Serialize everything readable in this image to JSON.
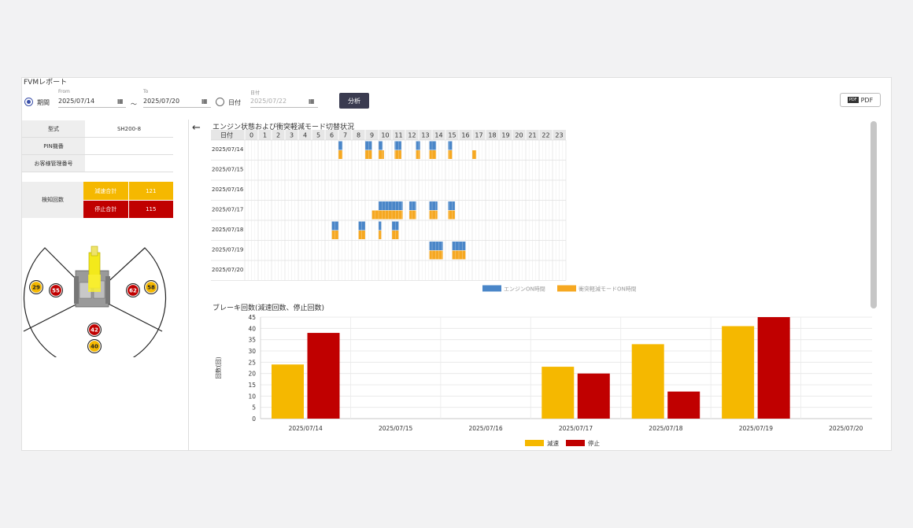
{
  "header": {
    "title": "FVMレポート",
    "period_label": "期間",
    "from_label": "From",
    "from_value": "2025/07/14",
    "tilde": "～",
    "to_label": "To",
    "to_value": "2025/07/20",
    "date_label": "日付",
    "date_small_label": "日付",
    "date_value": "2025/07/22",
    "analyze_label": "分析",
    "pdf_label": "PDF",
    "pdf_icon_text": "PDF",
    "calendar_glyph": "▦"
  },
  "info": {
    "rows": [
      {
        "key": "型式",
        "value": "SH200-8"
      },
      {
        "key": "PIN機番",
        "value": ""
      },
      {
        "key": "お客様管理番号",
        "value": ""
      }
    ],
    "detection_label": "検知回数",
    "decel_label": "減速合計",
    "decel_value": "121",
    "stop_label": "停止合計",
    "stop_value": "115"
  },
  "colors": {
    "decel": "#f5b800",
    "stop": "#c00000",
    "engine": "#4a86c8",
    "mode": "#f6a821"
  },
  "diagram": {
    "markers": [
      {
        "name": "marker-left-outer",
        "value": "29",
        "kind": "decel"
      },
      {
        "name": "marker-left-inner",
        "value": "55",
        "kind": "stop"
      },
      {
        "name": "marker-right-inner",
        "value": "62",
        "kind": "stop"
      },
      {
        "name": "marker-right-outer",
        "value": "58",
        "kind": "decel"
      },
      {
        "name": "marker-rear-inner",
        "value": "42",
        "kind": "stop"
      },
      {
        "name": "marker-rear-outer",
        "value": "40",
        "kind": "decel"
      }
    ]
  },
  "back_glyph": "←",
  "chart_data": [
    {
      "type": "heatmap",
      "title": "エンジン状態および衝突軽減モード切替状況",
      "row_header": "日付",
      "hours": [
        "0",
        "1",
        "2",
        "3",
        "4",
        "5",
        "6",
        "7",
        "8",
        "9",
        "10",
        "11",
        "12",
        "13",
        "14",
        "15",
        "16",
        "17",
        "18",
        "19",
        "20",
        "21",
        "22",
        "23"
      ],
      "dates": [
        "2025/07/14",
        "2025/07/15",
        "2025/07/16",
        "2025/07/17",
        "2025/07/18",
        "2025/07/19",
        "2025/07/20"
      ],
      "engine_on": [
        [
          7.0,
          7.3
        ],
        [
          9.0,
          9.5
        ],
        [
          10.0,
          10.3
        ],
        [
          11.2,
          11.7
        ],
        [
          12.8,
          13.1
        ],
        [
          13.8,
          14.3
        ],
        [
          15.2,
          15.5
        ]
      ],
      "engine_rows": [
        0,
        0,
        0,
        0,
        0,
        0,
        0
      ],
      "engine_on_all": [
        {
          "row": 0,
          "ranges": [
            [
              7.0,
              7.3
            ],
            [
              9.0,
              9.5
            ],
            [
              10.0,
              10.3
            ],
            [
              11.2,
              11.7
            ],
            [
              12.8,
              13.1
            ],
            [
              13.8,
              14.3
            ],
            [
              15.2,
              15.5
            ]
          ]
        },
        {
          "row": 3,
          "ranges": [
            [
              10.0,
              11.8
            ],
            [
              12.3,
              12.8
            ],
            [
              13.8,
              14.4
            ],
            [
              15.2,
              15.7
            ]
          ]
        },
        {
          "row": 4,
          "ranges": [
            [
              6.5,
              7.0
            ],
            [
              8.5,
              9.0
            ],
            [
              10.0,
              10.2
            ],
            [
              11.0,
              11.5
            ]
          ]
        },
        {
          "row": 5,
          "ranges": [
            [
              13.8,
              14.8
            ],
            [
              15.5,
              16.5
            ]
          ]
        }
      ],
      "mode_on_all": [
        {
          "row": 0,
          "ranges": [
            [
              7.0,
              7.3
            ],
            [
              9.0,
              9.5
            ],
            [
              10.0,
              10.4
            ],
            [
              11.2,
              11.7
            ],
            [
              12.8,
              13.1
            ],
            [
              13.8,
              14.3
            ],
            [
              15.2,
              15.5
            ],
            [
              17.0,
              17.3
            ]
          ]
        },
        {
          "row": 3,
          "ranges": [
            [
              9.5,
              11.8
            ],
            [
              12.3,
              12.8
            ],
            [
              13.8,
              14.4
            ],
            [
              15.2,
              15.7
            ]
          ]
        },
        {
          "row": 4,
          "ranges": [
            [
              6.5,
              7.0
            ],
            [
              8.5,
              9.0
            ],
            [
              10.0,
              10.2
            ],
            [
              11.0,
              11.5
            ]
          ]
        },
        {
          "row": 5,
          "ranges": [
            [
              13.8,
              14.8
            ],
            [
              15.5,
              16.5
            ]
          ]
        }
      ],
      "legend": [
        "エンジンON時間",
        "衝突軽減モードON時間"
      ]
    },
    {
      "type": "bar",
      "title": "ブレーキ回数(減速回数、停止回数)",
      "ylabel": "回数(回)",
      "ylim": [
        0,
        45
      ],
      "yticks": [
        0,
        5,
        10,
        15,
        20,
        25,
        30,
        35,
        40,
        45
      ],
      "categories": [
        "2025/07/14",
        "2025/07/15",
        "2025/07/16",
        "2025/07/17",
        "2025/07/18",
        "2025/07/19",
        "2025/07/20"
      ],
      "series": [
        {
          "name": "減速",
          "values": [
            24,
            0,
            0,
            23,
            33,
            41,
            0
          ]
        },
        {
          "name": "停止",
          "values": [
            38,
            0,
            0,
            20,
            12,
            45,
            0
          ]
        }
      ]
    }
  ]
}
